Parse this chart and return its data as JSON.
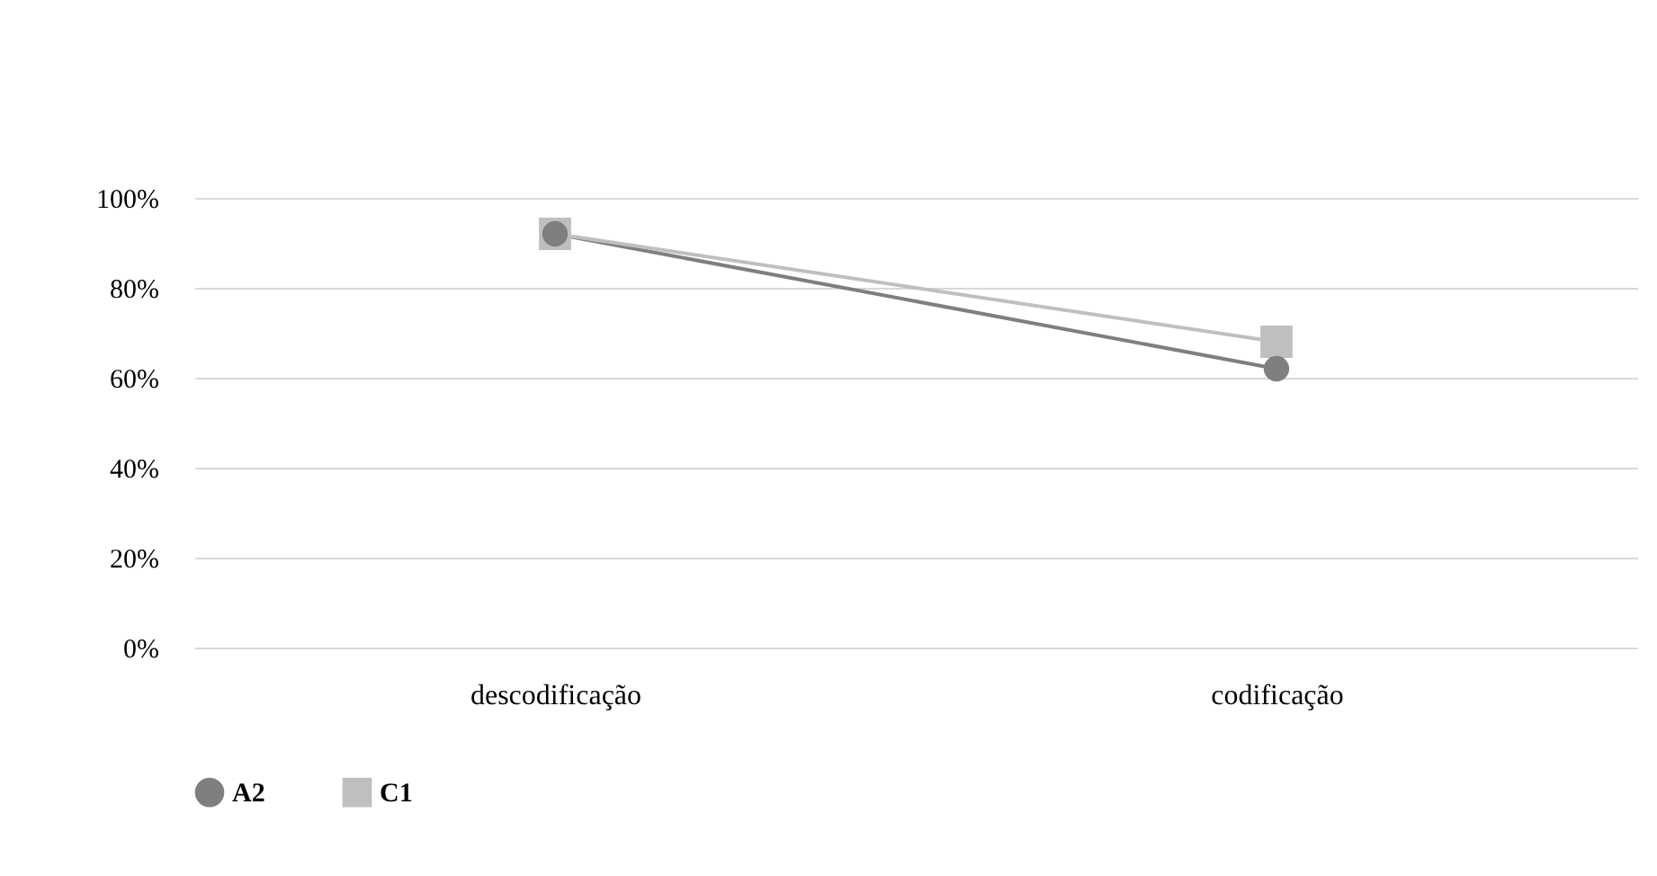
{
  "chart_data": {
    "type": "line",
    "categories": [
      "descodificação",
      "codificação"
    ],
    "series": [
      {
        "name": "A2",
        "color": "#7f7f7f",
        "marker": "circle",
        "values": [
          92,
          62
        ]
      },
      {
        "name": "C1",
        "color": "#bfbfbf",
        "marker": "square",
        "values": [
          92,
          68
        ]
      }
    ],
    "ylim": [
      0,
      100
    ],
    "yticks": [
      {
        "value": 0,
        "label": "0%"
      },
      {
        "value": 20,
        "label": "20%"
      },
      {
        "value": 40,
        "label": "40%"
      },
      {
        "value": 60,
        "label": "60%"
      },
      {
        "value": 80,
        "label": "80%"
      },
      {
        "value": 100,
        "label": "100%"
      }
    ],
    "grid": "y",
    "legend": "bottom",
    "line_style": "solid"
  }
}
